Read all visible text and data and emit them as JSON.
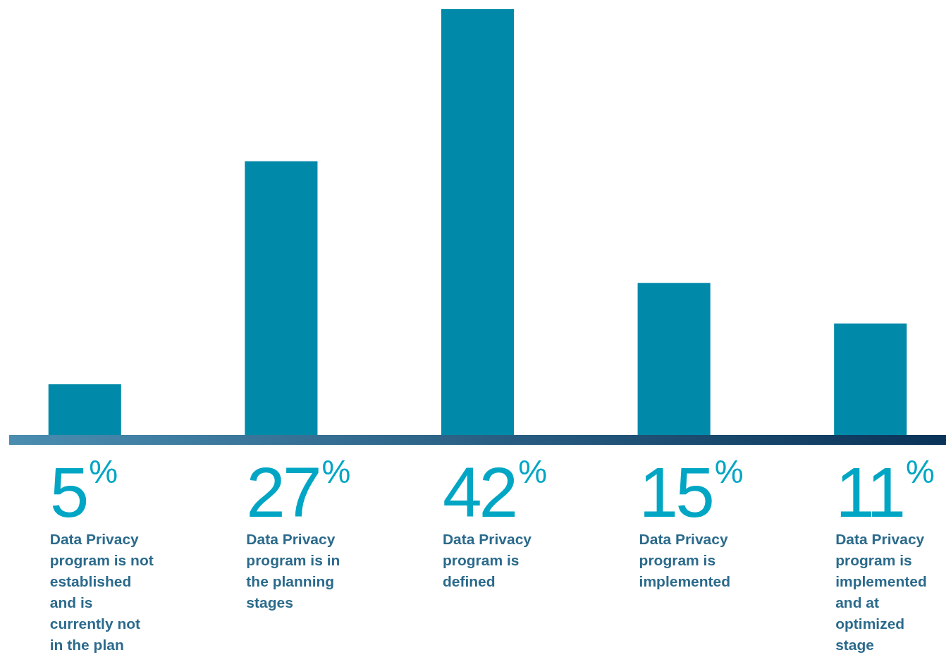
{
  "chart_data": {
    "type": "bar",
    "categories": [
      "Data Privacy program is not established and is currently not in the plan",
      "Data Privacy program is in the planning stages",
      "Data Privacy program is defined",
      "Data Privacy program is implemented",
      "Data Privacy program is implemented and at optimized stage"
    ],
    "values": [
      5,
      27,
      42,
      15,
      11
    ],
    "value_labels": [
      "5$^{%}$",
      "27$^{%}$",
      "42$^{%}$",
      "15$^{%}$",
      "11$^{%}$"
    ],
    "color": "#0089a9"
  }
}
